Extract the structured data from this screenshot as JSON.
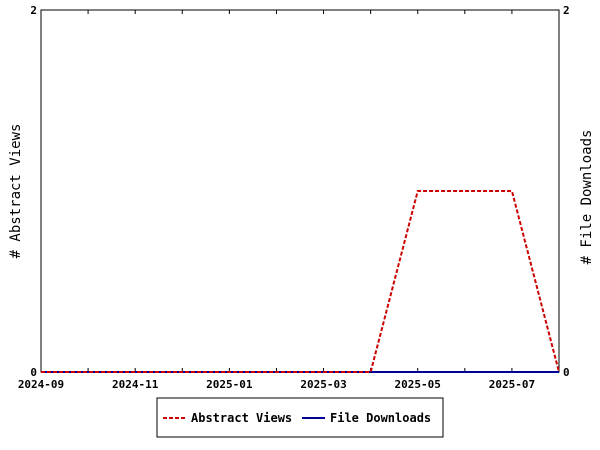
{
  "chart_data": {
    "type": "line",
    "x": [
      "2024-09",
      "2024-10",
      "2024-11",
      "2024-12",
      "2025-01",
      "2025-02",
      "2025-03",
      "2025-04",
      "2025-05",
      "2025-06",
      "2025-07",
      "2025-08"
    ],
    "x_tick_labels": [
      "2024-09",
      "2024-11",
      "2025-01",
      "2025-03",
      "2025-05",
      "2025-07"
    ],
    "series": [
      {
        "name": "Abstract Views",
        "axis": "left",
        "color": "#cc0000",
        "style": "dashed",
        "values": [
          0,
          0,
          0,
          0,
          0,
          0,
          0,
          0,
          1,
          1,
          1,
          0
        ]
      },
      {
        "name": "File Downloads",
        "axis": "right",
        "color": "#000099",
        "style": "solid",
        "values": [
          0,
          0,
          0,
          0,
          0,
          0,
          0,
          0,
          0,
          0,
          0,
          0
        ]
      }
    ],
    "ylabel_left": "# Abstract Views",
    "ylabel_right": "# File Downloads",
    "ylim_left": [
      0,
      2
    ],
    "ylim_right": [
      0,
      2
    ],
    "y_ticks_left": [
      "0",
      "2"
    ],
    "y_ticks_right": [
      "0",
      "2"
    ],
    "grid": false,
    "legend_position": "bottom"
  }
}
